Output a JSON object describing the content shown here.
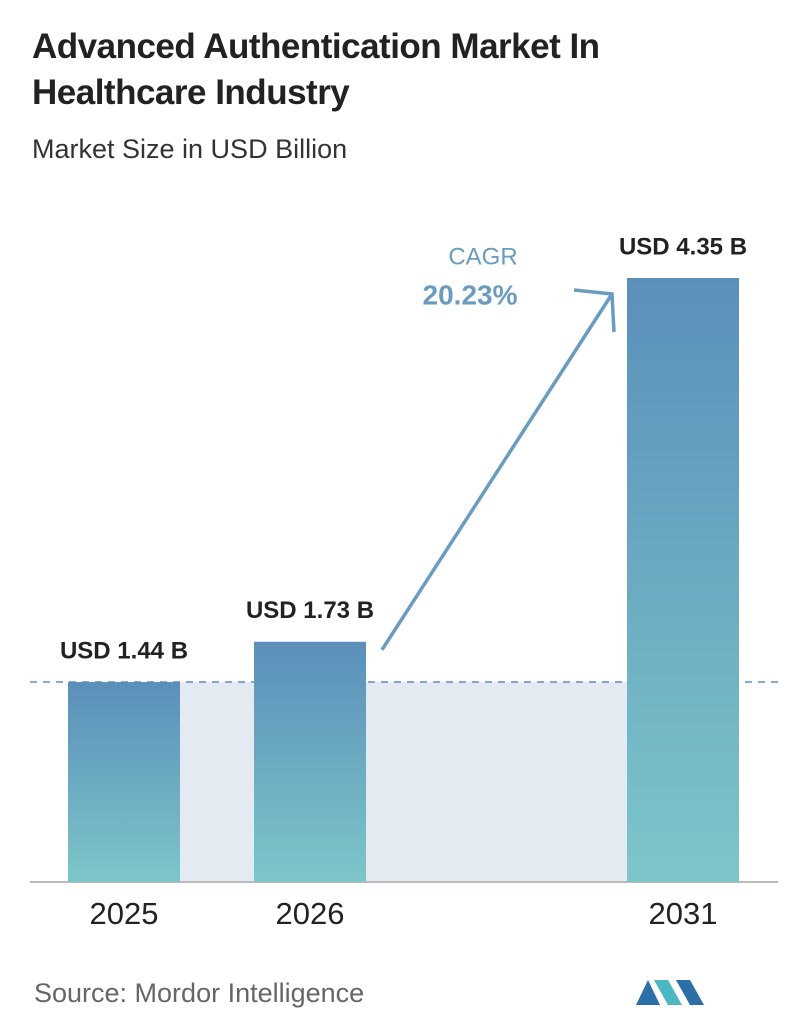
{
  "chart_data": {
    "type": "bar",
    "title": "Advanced Authentication Market In Healthcare Industry",
    "subtitle": "Market Size in USD Billion",
    "categories": [
      "2025",
      "2026",
      "2031"
    ],
    "values": [
      1.44,
      1.73,
      4.35
    ],
    "value_labels": [
      "USD 1.44 B",
      "USD 1.73 B",
      "USD 4.35 B"
    ],
    "colors": [
      "#5b8fba",
      "#7cc6c9"
    ],
    "annotation": {
      "label": "CAGR",
      "value": "20.23%"
    },
    "source": "Source: Mordor Intelligence"
  }
}
